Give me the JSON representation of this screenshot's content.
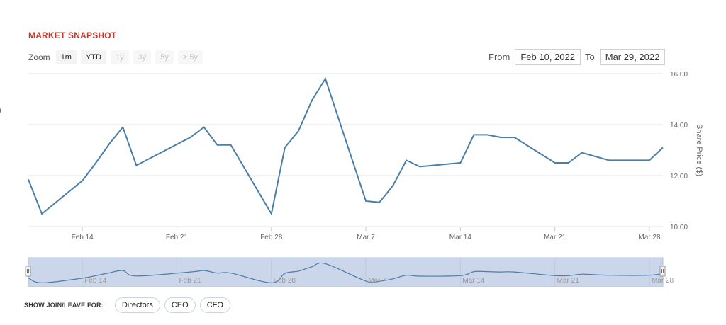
{
  "header": {
    "title": "MARKET SNAPSHOT"
  },
  "zoom": {
    "label": "Zoom",
    "buttons": [
      {
        "label": "1m",
        "enabled": true
      },
      {
        "label": "YTD",
        "enabled": true
      },
      {
        "label": "1y",
        "enabled": false
      },
      {
        "label": "3y",
        "enabled": false
      },
      {
        "label": "5y",
        "enabled": false
      },
      {
        "label": "> 5y",
        "enabled": false
      }
    ]
  },
  "range": {
    "from_label": "From",
    "from_value": "Feb 10, 2022",
    "to_label": "To",
    "to_value": "Mar 29, 2022"
  },
  "side_label": ")",
  "filters": {
    "label": "SHOW JOIN/LEAVE FOR:",
    "buttons": [
      "Directors",
      "CEO",
      "CFO"
    ]
  },
  "colors": {
    "line": "#4a7ea6",
    "navigator_fill": "#ccd6ea",
    "title": "#c0392b"
  },
  "chart_data": {
    "type": "line",
    "ylabel": "Share Price ($)",
    "ylim": [
      10,
      16
    ],
    "yticks": [
      "10.00",
      "12.00",
      "14.00",
      "16.00"
    ],
    "xlim": [
      "2022-02-10",
      "2022-03-29"
    ],
    "xticks": [
      {
        "date": "2022-02-14",
        "label": "Feb 14"
      },
      {
        "date": "2022-02-21",
        "label": "Feb 21"
      },
      {
        "date": "2022-02-28",
        "label": "Feb 28"
      },
      {
        "date": "2022-03-07",
        "label": "Mar 7"
      },
      {
        "date": "2022-03-14",
        "label": "Mar 14"
      },
      {
        "date": "2022-03-21",
        "label": "Mar 21"
      },
      {
        "date": "2022-03-28",
        "label": "Mar 28"
      }
    ],
    "grid": true,
    "series": [
      {
        "x": [
          "2022-02-10",
          "2022-02-11",
          "2022-02-14",
          "2022-02-15",
          "2022-02-16",
          "2022-02-17",
          "2022-02-18",
          "2022-02-22",
          "2022-02-23",
          "2022-02-24",
          "2022-02-25",
          "2022-02-28",
          "2022-03-01",
          "2022-03-02",
          "2022-03-03",
          "2022-03-04",
          "2022-03-07",
          "2022-03-08",
          "2022-03-09",
          "2022-03-10",
          "2022-03-11",
          "2022-03-14",
          "2022-03-15",
          "2022-03-16",
          "2022-03-17",
          "2022-03-18",
          "2022-03-21",
          "2022-03-22",
          "2022-03-23",
          "2022-03-24",
          "2022-03-25",
          "2022-03-28",
          "2022-03-29"
        ],
        "y": [
          11.85,
          10.5,
          11.8,
          12.5,
          13.25,
          13.9,
          12.4,
          13.5,
          13.9,
          13.2,
          13.2,
          10.5,
          13.1,
          13.75,
          14.95,
          15.8,
          11.0,
          10.95,
          11.6,
          12.6,
          12.35,
          12.5,
          13.6,
          13.6,
          13.5,
          13.5,
          12.5,
          12.5,
          12.9,
          12.75,
          12.6,
          12.6,
          13.1
        ]
      }
    ]
  }
}
